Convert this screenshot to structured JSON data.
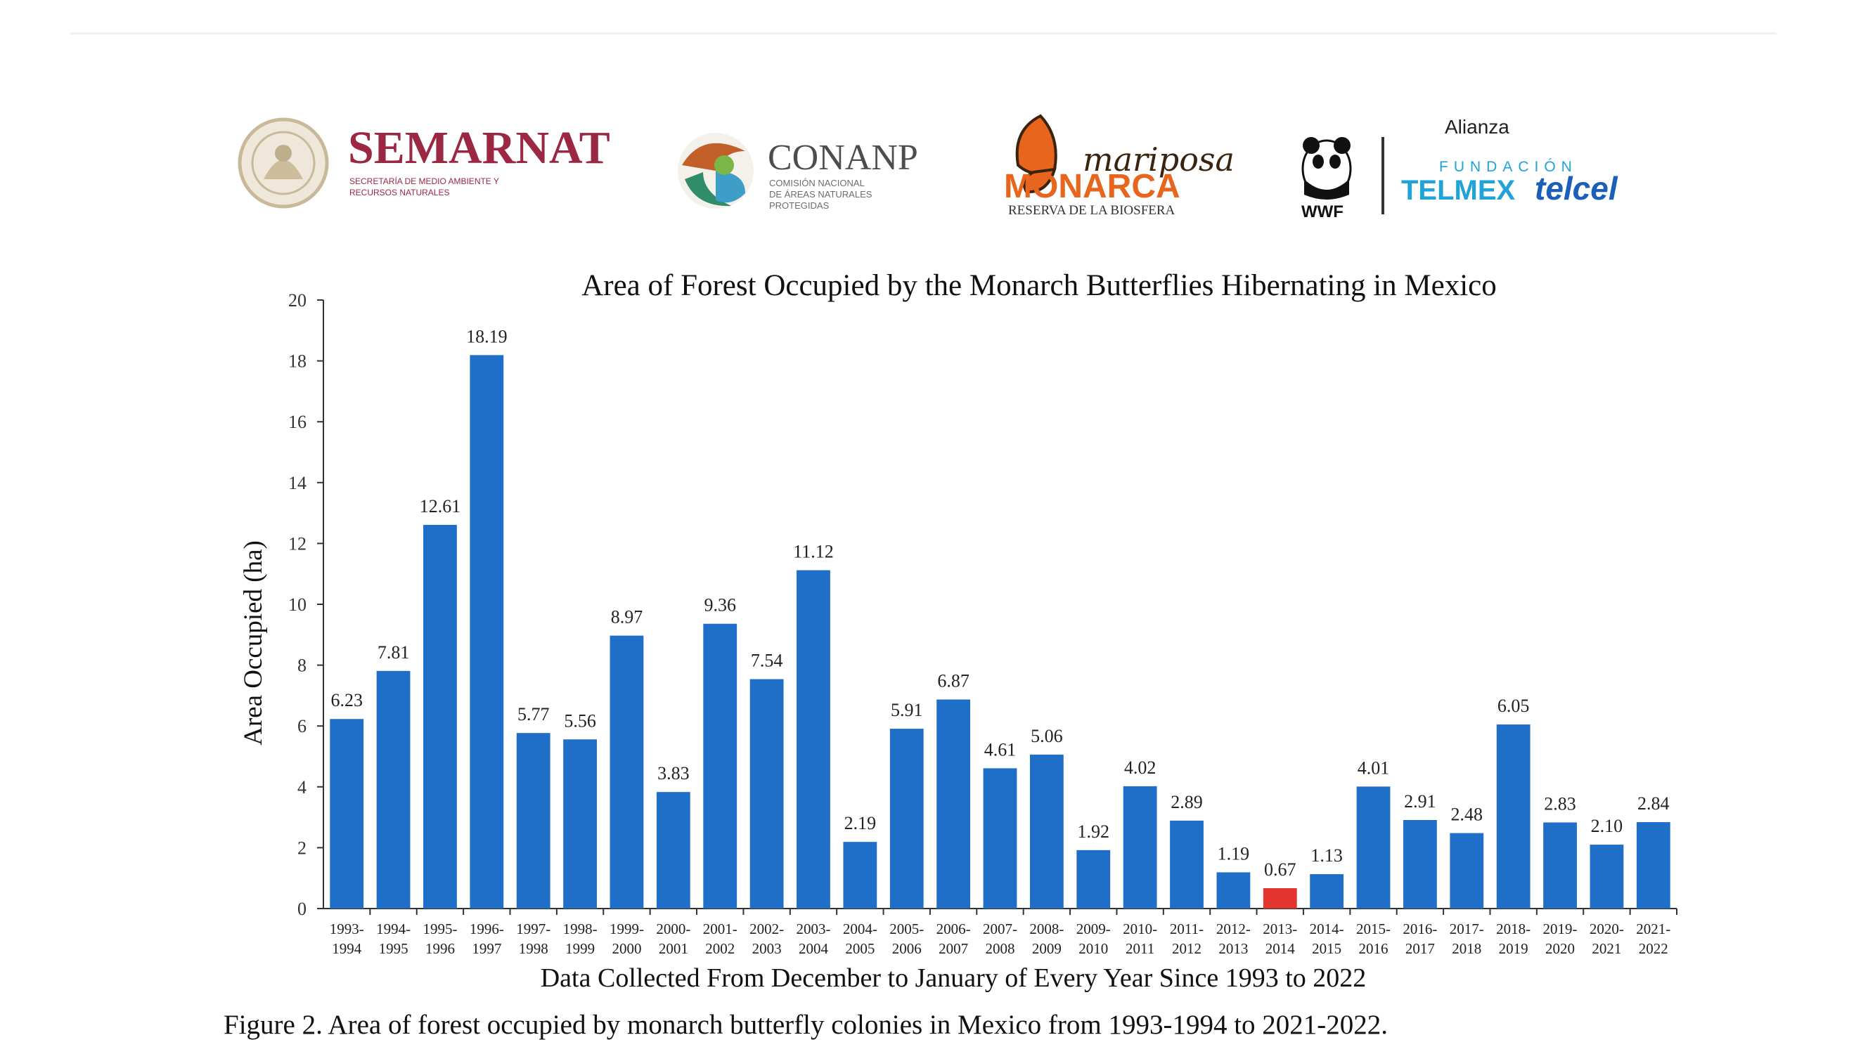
{
  "logos": {
    "semarnat": {
      "name": "SEMARNAT",
      "sub1": "SECRETARÍA DE MEDIO AMBIENTE Y",
      "sub2": "RECURSOS NATURALES",
      "color": "#9b2743"
    },
    "conanp": {
      "name": "CONANP",
      "sub1": "COMISIÓN NACIONAL",
      "sub2": "DE ÁREAS NATURALES",
      "sub3": "PROTEGIDAS",
      "color": "#4d4d4f"
    },
    "monarca": {
      "script": "mariposa",
      "name": "MONARCA",
      "sub": "RESERVA DE LA BIOSFERA",
      "color": "#e8651e"
    },
    "wwf": {
      "name": "WWF"
    },
    "alianza": {
      "label": "Alianza",
      "fundacion": "FUNDACIÓN",
      "telmex": "TELMEX",
      "telcel": "telcel",
      "color": "#1fa3d8"
    }
  },
  "chart_data": {
    "type": "bar",
    "title": "Area of Forest Occupied by the Monarch Butterflies Hibernating in Mexico",
    "xlabel": "Data Collected From December to January of Every Year Since 1993 to 2022",
    "ylabel": "Area Occupied (ha)",
    "ylim": [
      0,
      20
    ],
    "yticks": [
      0,
      2,
      4,
      6,
      8,
      10,
      12,
      14,
      16,
      18,
      20
    ],
    "categories": [
      [
        "1993-",
        "1994"
      ],
      [
        "1994-",
        "1995"
      ],
      [
        "1995-",
        "1996"
      ],
      [
        "1996-",
        "1997"
      ],
      [
        "1997-",
        "1998"
      ],
      [
        "1998-",
        "1999"
      ],
      [
        "1999-",
        "2000"
      ],
      [
        "2000-",
        "2001"
      ],
      [
        "2001-",
        "2002"
      ],
      [
        "2002-",
        "2003"
      ],
      [
        "2003-",
        "2004"
      ],
      [
        "2004-",
        "2005"
      ],
      [
        "2005-",
        "2006"
      ],
      [
        "2006-",
        "2007"
      ],
      [
        "2007-",
        "2008"
      ],
      [
        "2008-",
        "2009"
      ],
      [
        "2009-",
        "2010"
      ],
      [
        "2010-",
        "2011"
      ],
      [
        "2011-",
        "2012"
      ],
      [
        "2012-",
        "2013"
      ],
      [
        "2013-",
        "2014"
      ],
      [
        "2014-",
        "2015"
      ],
      [
        "2015-",
        "2016"
      ],
      [
        "2016-",
        "2017"
      ],
      [
        "2017-",
        "2018"
      ],
      [
        "2018-",
        "2019"
      ],
      [
        "2019-",
        "2020"
      ],
      [
        "2020-",
        "2021"
      ],
      [
        "2021-",
        "2022"
      ]
    ],
    "values": [
      6.23,
      7.81,
      12.61,
      18.19,
      5.77,
      5.56,
      8.97,
      3.83,
      9.36,
      7.54,
      11.12,
      2.19,
      5.91,
      6.87,
      4.61,
      5.06,
      1.92,
      4.02,
      2.89,
      1.19,
      0.67,
      1.13,
      4.01,
      2.91,
      2.48,
      6.05,
      2.83,
      2.1,
      2.84
    ],
    "labels": [
      "6.23",
      "7.81",
      "12.61",
      "18.19",
      "5.77",
      "5.56",
      "8.97",
      "3.83",
      "9.36",
      "7.54",
      "11.12",
      "2.19",
      "5.91",
      "6.87",
      "4.61",
      "5.06",
      "1.92",
      "4.02",
      "2.89",
      "1.19",
      "0.67",
      "1.13",
      "4.01",
      "2.91",
      "2.48",
      "6.05",
      "2.83",
      "2.10",
      "2.84"
    ],
    "bar_color": "#1f6fc9",
    "highlight_color": "#e3342f",
    "highlight_index": 20,
    "grid": false
  },
  "caption": "Figure 2. Area of forest occupied by monarch butterfly colonies in Mexico from 1993-1994 to 2021-2022."
}
